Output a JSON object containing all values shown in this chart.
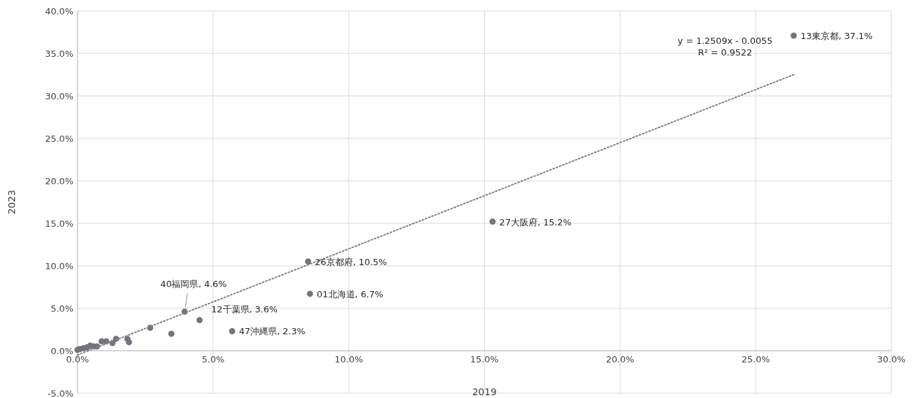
{
  "chart_data": {
    "type": "scatter",
    "xlabel": "2019",
    "ylabel": "2023",
    "annotations": [
      "y = 1.2509x - 0.0055",
      "R² = 0.9522"
    ],
    "xlim": [
      0,
      30
    ],
    "ylim": [
      -5,
      40
    ],
    "xticks": [
      {
        "value": 0,
        "label": "0.0%"
      },
      {
        "value": 5,
        "label": "5.0%"
      },
      {
        "value": 10,
        "label": "10.0%"
      },
      {
        "value": 15,
        "label": "15.0%"
      },
      {
        "value": 20,
        "label": "20.0%"
      },
      {
        "value": 25,
        "label": "25.0%"
      },
      {
        "value": 30,
        "label": "30.0%"
      }
    ],
    "yticks": [
      {
        "value": -5,
        "label": "-5.0%"
      },
      {
        "value": 0,
        "label": "0.0%"
      },
      {
        "value": 5,
        "label": "5.0%"
      },
      {
        "value": 10,
        "label": "10.0%"
      },
      {
        "value": 15,
        "label": "15.0%"
      },
      {
        "value": 20,
        "label": "20.0%"
      },
      {
        "value": 25,
        "label": "25.0%"
      },
      {
        "value": 30,
        "label": "30.0%"
      },
      {
        "value": 35,
        "label": "35.0%"
      },
      {
        "value": 40,
        "label": "40.0%"
      }
    ],
    "grid": true,
    "marker": "circle",
    "series": [
      {
        "type": "scatter",
        "color": "#76737f",
        "x": [
          0.0,
          0.09,
          0.22,
          0.35,
          0.47,
          0.6,
          0.72,
          0.89,
          1.06,
          1.29,
          1.42,
          1.84,
          1.9,
          2.68,
          3.46,
          3.95,
          4.5,
          5.7,
          8.5,
          8.57,
          15.3,
          26.4
        ],
        "values": [
          0.1,
          0.2,
          0.3,
          0.4,
          0.6,
          0.5,
          0.5,
          1.1,
          1.1,
          0.9,
          1.4,
          1.4,
          1.0,
          2.7,
          2.0,
          4.6,
          3.6,
          2.3,
          10.5,
          6.7,
          15.2,
          37.1
        ],
        "value_labels": [
          null,
          null,
          null,
          null,
          null,
          null,
          null,
          null,
          null,
          null,
          null,
          null,
          null,
          null,
          null,
          "40福岡県, 4.6%",
          "12千葉県, 3.6%",
          "47沖縄県, 2.3%",
          "26京都府, 10.5%",
          "01北海道, 6.7%",
          "27大阪府, 15.2%",
          "13東京都, 37.1%"
        ]
      },
      {
        "type": "line",
        "color": "#808080",
        "line_style": "dotted",
        "marker": "none",
        "x": [
          0,
          26.4
        ],
        "values": [
          -0.5,
          32.5
        ]
      }
    ]
  }
}
